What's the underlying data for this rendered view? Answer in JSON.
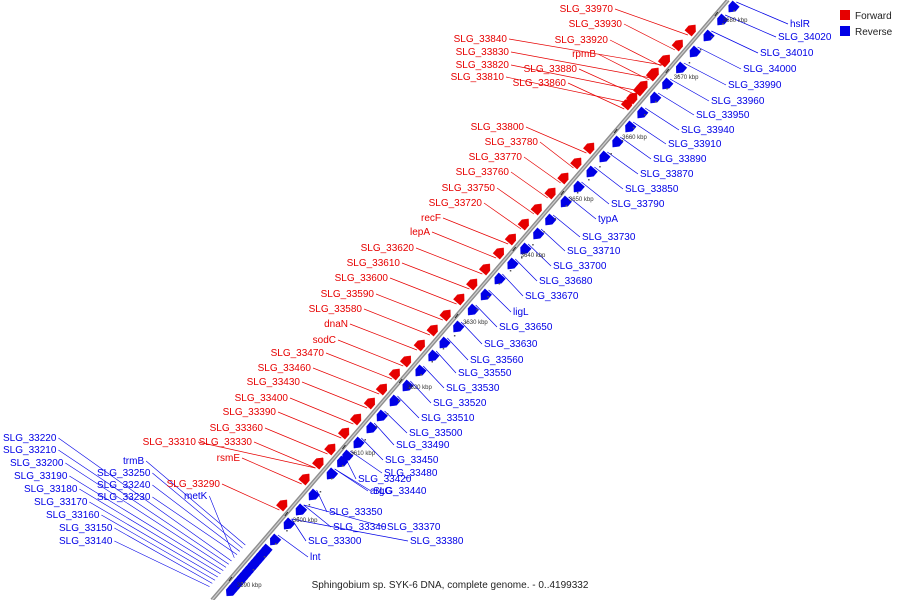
{
  "caption": "Sphingobium sp. SYK-6 DNA, complete genome. - 0..4199332",
  "legend": [
    {
      "label": "Forward",
      "color": "#e60000"
    },
    {
      "label": "Reverse",
      "color": "#0000e6"
    }
  ],
  "colors": {
    "forward": "#e60000",
    "reverse": "#0000e6",
    "axis": "#9a9a9a",
    "leader_forward": "#e60000",
    "leader_reverse": "#0000e6"
  },
  "ticks": [
    "3590 kbp",
    "3600 kbp",
    "3610 kbp",
    "3620 kbp",
    "3630 kbp",
    "3640 kbp",
    "3650 kbp",
    "3660 kbp",
    "3670 kbp",
    "3680 kbp"
  ],
  "forward_labels": [
    "SLG_33970",
    "SLG_33930",
    "SLG_33920",
    "rpmB",
    "SLG_33840",
    "SLG_33830",
    "SLG_33880",
    "SLG_33820",
    "SLG_33810",
    "SLG_33860",
    "SLG_33800",
    "SLG_33780",
    "SLG_33770",
    "SLG_33760",
    "SLG_33750",
    "SLG_33720",
    "recF",
    "lepA",
    "SLG_33620",
    "SLG_33610",
    "SLG_33600",
    "SLG_33590",
    "SLG_33580",
    "dnaN",
    "sodC",
    "SLG_33470",
    "SLG_33460",
    "SLG_33430",
    "SLG_33400",
    "SLG_33390",
    "SLG_33360",
    "SLG_33310",
    "SLG_33330",
    "rsmE",
    "SLG_33290"
  ],
  "reverse_labels": [
    "hslR",
    "SLG_34020",
    "SLG_34010",
    "SLG_34000",
    "SLG_33990",
    "SLG_33960",
    "SLG_33950",
    "SLG_33940",
    "SLG_33910",
    "SLG_33890",
    "SLG_33870",
    "SLG_33850",
    "SLG_33790",
    "typA",
    "SLG_33730",
    "SLG_33710",
    "SLG_33700",
    "SLG_33680",
    "SLG_33670",
    "ligL",
    "SLG_33650",
    "SLG_33630",
    "SLG_33560",
    "SLG_33550",
    "SLG_33530",
    "SLG_33520",
    "SLG_33510",
    "SLG_33500",
    "SLG_33490",
    "SLG_33480",
    "SLG_33450",
    "SLG_33440",
    "SLG_33420",
    "argG",
    "SLG_33350",
    "SLG_33340",
    "SLG_33370",
    "SLG_33380",
    "SLG_33300",
    "lnt",
    "trmB",
    "SLG_33250",
    "SLG_33240",
    "SLG_33230",
    "metK",
    "SLG_33220",
    "SLG_33210",
    "SLG_33200",
    "SLG_33190",
    "SLG_33180",
    "SLG_33170",
    "SLG_33160",
    "SLG_33150",
    "SLG_33140"
  ]
}
